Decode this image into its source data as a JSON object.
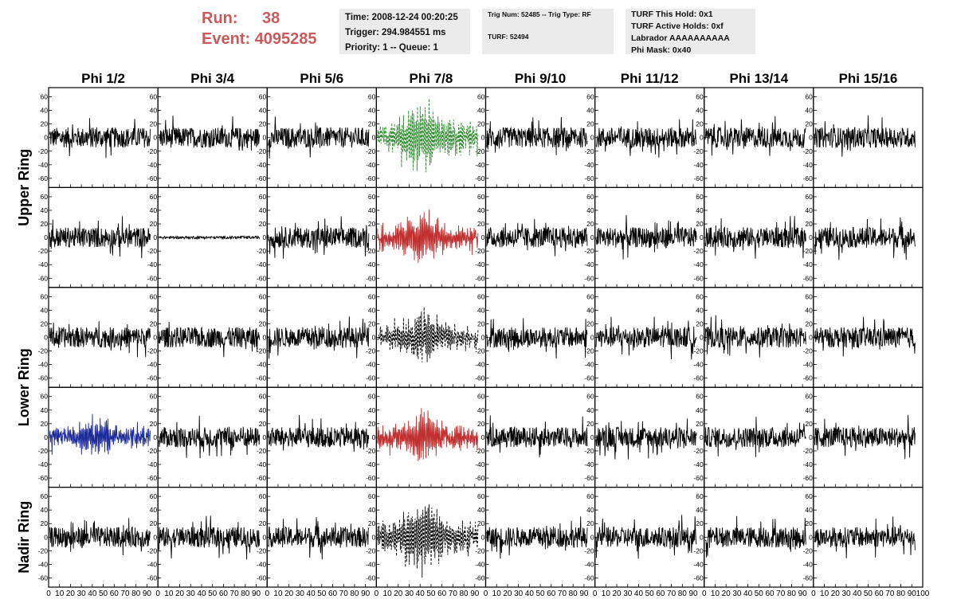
{
  "header": {
    "run_label": "Run:",
    "run_value": "38",
    "event_label": "Event:",
    "event_value": "4095285",
    "time_line": "Time: 2008-12-24 00:20:25",
    "trigger_line": "Trigger: 294.984551 ms",
    "priority_line": "Priority: 1 -- Queue: 1",
    "trig_line": "Trig Num: 52485 -- Trig Type: RF",
    "turf_line": "TURF: 52494",
    "turf_hold_line": "TURF This Hold: 0x1",
    "turf_active_line": "TURF Active Holds: 0xf",
    "labrador_line": "Labrador AAAAAAAAAA",
    "phi_mask_line": "Phi Mask: 0x40",
    "accent_color": "#c85a5a"
  },
  "chart_data": {
    "type": "line",
    "columns": [
      "Phi 1/2",
      "Phi 3/4",
      "Phi 5/6",
      "Phi 7/8",
      "Phi 9/10",
      "Phi 11/12",
      "Phi 13/14",
      "Phi 15/16"
    ],
    "rows": [
      "Upper Ring",
      "Lower Ring",
      "Nadir Ring"
    ],
    "ylim": [
      -70,
      70
    ],
    "xlim": [
      0,
      100
    ],
    "ytick_labels": [
      "60",
      "40",
      "20",
      "0",
      "-20",
      "-40",
      "-60"
    ],
    "xtick_labels": [
      "0",
      "10",
      "20",
      "30",
      "40",
      "50",
      "60",
      "70",
      "80",
      "90",
      "100"
    ],
    "panel_rows": 5,
    "ring_row_pairs": [
      [
        0,
        1
      ],
      [
        2,
        3
      ],
      [
        4,
        4
      ]
    ],
    "highlighted_traces": [
      {
        "row": 0,
        "col": 3,
        "color": "#2a8a2a",
        "style": "dashed",
        "peak": 60
      },
      {
        "row": 1,
        "col": 3,
        "color": "#c03030",
        "style": "solid",
        "peak": 40
      },
      {
        "row": 2,
        "col": 3,
        "color": "#000000",
        "style": "dashed",
        "peak": 40
      },
      {
        "row": 3,
        "col": 0,
        "color": "#1c2a9a",
        "style": "solid",
        "peak": 28
      },
      {
        "row": 3,
        "col": 3,
        "color": "#c03030",
        "style": "solid",
        "peak": 40
      },
      {
        "row": 4,
        "col": 3,
        "color": "#000000",
        "style": "dashed",
        "peak": 60
      }
    ],
    "flat_traces": [
      {
        "row": 1,
        "col": 1,
        "amplitude": 2
      }
    ],
    "default_trace_color": "#000000",
    "noise_amplitude": 15
  }
}
